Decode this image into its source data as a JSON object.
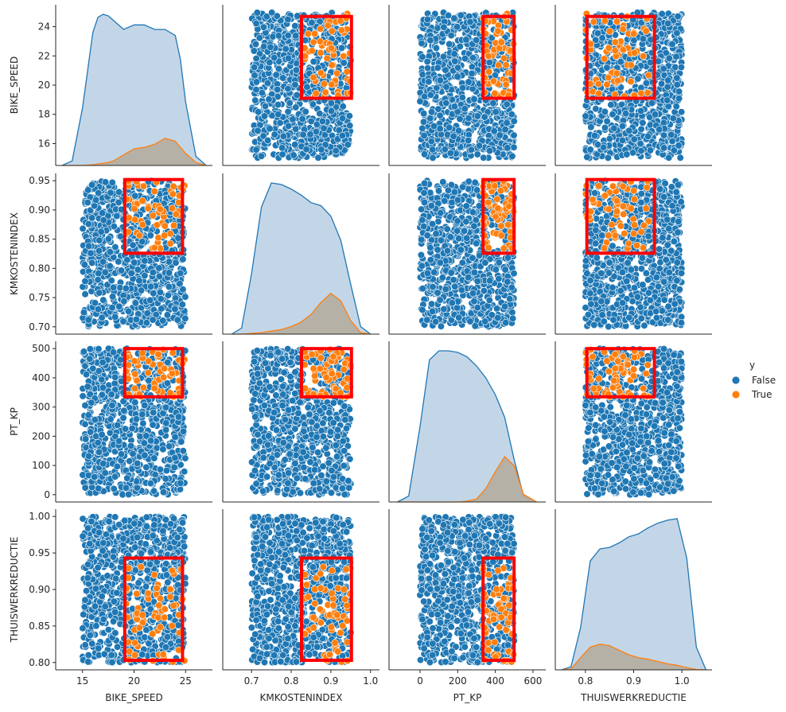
{
  "chart_data": {
    "type": "scatter",
    "variables": [
      "BIKE_SPEED",
      "KMKOSTENINDEX",
      "PT_KP",
      "THUISWERKREDUCTIE"
    ],
    "axes": {
      "BIKE_SPEED": {
        "lim": [
          12.4,
          27.6
        ],
        "ticks": [
          15,
          20,
          25
        ],
        "ylim": [
          14.5,
          25.5
        ],
        "yticks": [
          16,
          18,
          20,
          22,
          24
        ]
      },
      "KMKOSTENINDEX": {
        "lim": [
          0.6275,
          1.0225
        ],
        "ticks": [
          0.7,
          0.8,
          0.9,
          1.0
        ],
        "tick_labels": [
          "0.7",
          "0.8",
          "0.9",
          "1.0"
        ],
        "ylim": [
          0.6875,
          0.9625
        ],
        "yticks": [
          0.7,
          0.75,
          0.8,
          0.85,
          0.9,
          0.95
        ],
        "ytick_labels": [
          "0.70",
          "0.75",
          "0.80",
          "0.85",
          "0.90",
          "0.95"
        ]
      },
      "PT_KP": {
        "lim": [
          -165,
          668
        ],
        "ticks": [
          0,
          200,
          400,
          600
        ],
        "ylim": [
          -25,
          525
        ],
        "yticks": [
          0,
          100,
          200,
          300,
          400,
          500
        ]
      },
      "THUISWERKREDUCTIE": {
        "lim": [
          0.7375,
          1.0625
        ],
        "ticks": [
          0.8,
          0.9,
          1.0
        ],
        "tick_labels": [
          "0.8",
          "0.9",
          "1.0"
        ],
        "ylim": [
          0.79,
          1.01
        ],
        "yticks": [
          0.8,
          0.85,
          0.9,
          0.95,
          1.0
        ],
        "ytick_labels": [
          "0.80",
          "0.85",
          "0.90",
          "0.95",
          "1.00"
        ]
      }
    },
    "ranges": {
      "BIKE_SPEED": [
        15,
        25
      ],
      "KMKOSTENINDEX": [
        0.7,
        0.95
      ],
      "PT_KP": [
        0,
        500
      ],
      "THUISWERKREDUCTIE": [
        0.8,
        1.0
      ]
    },
    "true_rule": {
      "BIKE_SPEED": [
        19.2,
        25
      ],
      "KMKOSTENINDEX": [
        0.83,
        0.95
      ],
      "PT_KP": [
        335,
        500
      ],
      "THUISWERKREDUCTIE": [
        0.8,
        0.94
      ]
    },
    "highlight_box": {
      "BIKE_SPEED": [
        19.1,
        24.7
      ],
      "KMKOSTENINDEX": [
        0.826,
        0.952
      ],
      "PT_KP": [
        335,
        500
      ],
      "THUISWERKREDUCTIE": [
        0.803,
        0.943
      ]
    },
    "n_points": 950,
    "kde": {
      "BIKE_SPEED": {
        "x": [
          13.0,
          14.0,
          15.0,
          16.0,
          16.5,
          17.0,
          17.5,
          18.0,
          19.0,
          20.0,
          21.0,
          22.0,
          23.0,
          24.0,
          24.5,
          25.0,
          26.0,
          27.0
        ],
        "false": [
          0.0,
          0.03,
          0.38,
          0.88,
          0.98,
          1.0,
          0.99,
          0.96,
          0.9,
          0.93,
          0.93,
          0.9,
          0.9,
          0.86,
          0.7,
          0.42,
          0.06,
          0.0
        ],
        "true": [
          0.0,
          0.0,
          0.0,
          0.005,
          0.01,
          0.015,
          0.02,
          0.03,
          0.07,
          0.11,
          0.12,
          0.14,
          0.18,
          0.16,
          0.12,
          0.08,
          0.02,
          0.0
        ]
      },
      "KMKOSTENINDEX": {
        "x": [
          0.65,
          0.675,
          0.7,
          0.725,
          0.75,
          0.775,
          0.8,
          0.825,
          0.85,
          0.875,
          0.9,
          0.925,
          0.95,
          0.975,
          1.0
        ],
        "false": [
          0.0,
          0.04,
          0.4,
          0.84,
          1.0,
          0.99,
          0.96,
          0.92,
          0.87,
          0.85,
          0.78,
          0.62,
          0.33,
          0.05,
          0.0
        ],
        "true": [
          0.0,
          0.0,
          0.005,
          0.01,
          0.02,
          0.03,
          0.05,
          0.08,
          0.13,
          0.21,
          0.27,
          0.22,
          0.09,
          0.01,
          0.0
        ]
      },
      "PT_KP": {
        "x": [
          -120,
          -60,
          0,
          50,
          100,
          150,
          200,
          250,
          300,
          350,
          400,
          450,
          500,
          550,
          620
        ],
        "false": [
          0.0,
          0.04,
          0.5,
          0.94,
          1.0,
          1.0,
          0.99,
          0.96,
          0.9,
          0.82,
          0.71,
          0.56,
          0.28,
          0.04,
          0.0
        ],
        "true": [
          0.0,
          0.0,
          0.0,
          0.0,
          0.0,
          0.0,
          0.0,
          0.005,
          0.02,
          0.09,
          0.2,
          0.3,
          0.24,
          0.05,
          0.0
        ]
      },
      "THUISWERKREDUCTIE": {
        "x": [
          0.75,
          0.77,
          0.79,
          0.81,
          0.83,
          0.85,
          0.87,
          0.89,
          0.91,
          0.93,
          0.95,
          0.97,
          0.99,
          1.01,
          1.03,
          1.05
        ],
        "false": [
          0.0,
          0.02,
          0.28,
          0.72,
          0.8,
          0.81,
          0.84,
          0.88,
          0.9,
          0.94,
          0.97,
          0.99,
          1.0,
          0.74,
          0.15,
          0.0
        ],
        "true": [
          0.0,
          0.005,
          0.08,
          0.15,
          0.17,
          0.16,
          0.13,
          0.1,
          0.08,
          0.07,
          0.055,
          0.04,
          0.03,
          0.015,
          0.002,
          0.0
        ]
      }
    },
    "legend": {
      "title": "y",
      "placement": "right",
      "entries": [
        {
          "label": "False",
          "color": "#1f77b4"
        },
        {
          "label": "True",
          "color": "#ff7f0e"
        }
      ]
    },
    "colors": {
      "false": "#1f77b4",
      "true": "#ff7f0e",
      "box": "#ff0000",
      "kde_false_fill": "#b9cfe4",
      "kde_true_fill": "#b5ada0"
    }
  }
}
